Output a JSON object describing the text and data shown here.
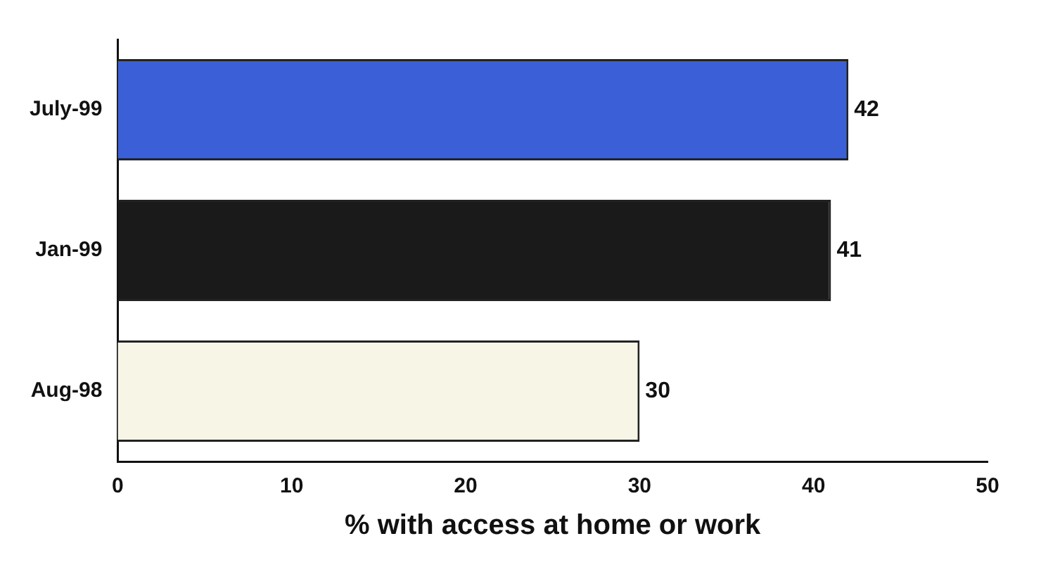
{
  "chart_data": {
    "type": "bar",
    "orientation": "horizontal",
    "categories": [
      "July-99",
      "Jan-99",
      "Aug-98"
    ],
    "values": [
      42,
      41,
      30
    ],
    "colors": [
      "#3a5fd6",
      "#1a1a1a",
      "#f7f5e6"
    ],
    "xlim": [
      0,
      50
    ],
    "xticks": [
      0,
      10,
      20,
      30,
      40,
      50
    ],
    "xlabel": "% with access at home or work",
    "data_labels": true,
    "grid": false,
    "legend": false
  }
}
